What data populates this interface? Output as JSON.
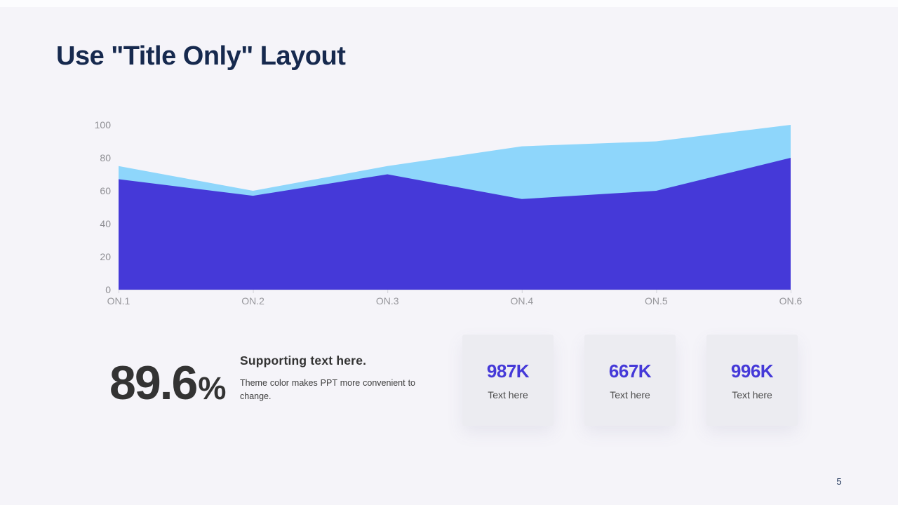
{
  "slide": {
    "title": "Use \"Title Only\" Layout",
    "page_number": "5"
  },
  "chart_data": {
    "type": "area",
    "title": "",
    "categories": [
      "ON.1",
      "ON.2",
      "ON.3",
      "ON.4",
      "ON.5",
      "ON.6"
    ],
    "series": [
      {
        "name": "series-light-blue",
        "color": "#8ed6fb",
        "values": [
          75,
          60,
          75,
          87,
          90,
          100
        ]
      },
      {
        "name": "series-dark-indigo",
        "color": "#4539d8",
        "values": [
          67,
          57,
          70,
          55,
          60,
          80
        ]
      }
    ],
    "xlabel": "",
    "ylabel": "",
    "ylim": [
      0,
      100
    ],
    "yticks": [
      0,
      20,
      40,
      60,
      80,
      100
    ],
    "grid": false,
    "legend": "none"
  },
  "stat": {
    "value": "89.6",
    "unit": "%"
  },
  "supporting": {
    "heading": "Supporting text here.",
    "body": "Theme color makes PPT more convenient to change."
  },
  "cards": [
    {
      "value": "987K",
      "label": "Text here"
    },
    {
      "value": "667K",
      "label": "Text here"
    },
    {
      "value": "996K",
      "label": "Text here"
    }
  ],
  "colors": {
    "accent": "#4539d8",
    "accent_light": "#8ed6fb",
    "title_navy": "#16294e",
    "background": "#f5f4f9",
    "card_background": "#ececf1",
    "axis_label": "#8e8e93",
    "axis_tick": "#d2d2d8",
    "baseline": "#e2e2e8"
  }
}
